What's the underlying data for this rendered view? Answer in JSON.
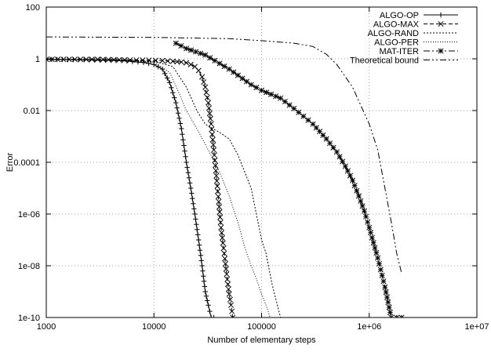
{
  "chart_data": {
    "type": "line",
    "xlabel": "Number of elementary steps",
    "ylabel": "Error",
    "x_scale": "log",
    "y_scale": "log",
    "xlim": [
      1000,
      10000000
    ],
    "ylim": [
      1e-10,
      100
    ],
    "grid": true,
    "legend_position": "top-right",
    "x_tick_labels": [
      "1000",
      "10000",
      "100000",
      "1e+06",
      "1e+07"
    ],
    "y_tick_labels": [
      "1e-10",
      "1e-08",
      "1e-06",
      "0.0001",
      "0.01",
      "1",
      "100"
    ],
    "series": [
      {
        "name": "ALGO-OP",
        "style": "solid",
        "marker": "plus",
        "x": [
          1000,
          2000,
          5000,
          8000,
          10000,
          12000,
          14000,
          16000,
          18000,
          20000,
          22000,
          24000,
          26000,
          28000,
          30000,
          32000,
          34000,
          36000
        ],
        "y": [
          0.95,
          0.92,
          0.85,
          0.72,
          0.6,
          0.4,
          0.12,
          0.02,
          0.002,
          0.0001,
          1e-05,
          1e-06,
          1e-07,
          1e-08,
          1e-09,
          3e-10,
          1e-10,
          1e-10
        ]
      },
      {
        "name": "ALGO-MAX",
        "style": "dashed",
        "marker": "cross",
        "x": [
          1000,
          3000,
          6000,
          9000,
          12000,
          15000,
          18000,
          20000,
          22000,
          24000,
          26000,
          28000,
          30000,
          32000,
          34000,
          36000,
          38000,
          40000,
          42000,
          45000,
          48000,
          50000,
          52000,
          54000
        ],
        "y": [
          0.95,
          0.95,
          0.9,
          0.88,
          0.85,
          0.8,
          0.75,
          0.7,
          0.6,
          0.5,
          0.35,
          0.2,
          0.08,
          0.02,
          0.003,
          0.0003,
          3e-05,
          3e-06,
          3e-07,
          3e-08,
          3e-09,
          8e-10,
          3e-10,
          1e-10
        ]
      },
      {
        "name": "ALGO-RAND",
        "style": "dotted",
        "marker": "none",
        "x": [
          1000,
          5000,
          10000,
          15000,
          20000,
          25000,
          30000,
          35000,
          40000,
          50000,
          60000,
          80000,
          100000,
          110000,
          125000,
          140000,
          150000
        ],
        "y": [
          0.95,
          0.9,
          0.8,
          0.5,
          0.08,
          0.01,
          0.003,
          0.002,
          0.0015,
          0.0008,
          0.0002,
          1e-05,
          1e-07,
          3e-08,
          2e-09,
          3e-10,
          1e-10
        ]
      },
      {
        "name": "ALGO-PER",
        "style": "dotted-fine",
        "marker": "none",
        "x": [
          1000,
          5000,
          10000,
          14000,
          17000,
          20000,
          25000,
          30000,
          40000,
          50000,
          60000,
          70000,
          80000,
          90000,
          100000,
          110000,
          120000
        ],
        "y": [
          0.95,
          0.9,
          0.75,
          0.3,
          0.05,
          0.01,
          0.002,
          0.0005,
          5e-05,
          5e-06,
          5e-07,
          5e-08,
          1e-08,
          3e-09,
          8e-10,
          3e-10,
          1e-10
        ]
      },
      {
        "name": "MAT-ITER",
        "style": "dash-dot",
        "marker": "star",
        "x": [
          16000,
          20000,
          30000,
          50000,
          80000,
          100000,
          150000,
          200000,
          300000,
          400000,
          500000,
          600000,
          700000,
          800000,
          900000,
          1000000,
          1200000,
          1400000,
          1600000,
          1800000,
          2000000
        ],
        "y": [
          4,
          2.5,
          1.4,
          0.4,
          0.1,
          0.06,
          0.03,
          0.012,
          0.003,
          0.0008,
          0.00025,
          7e-05,
          2e-05,
          5e-06,
          1.3e-06,
          3e-07,
          2e-08,
          1.5e-09,
          1e-10,
          1e-10,
          1e-10
        ]
      },
      {
        "name": "Theoretical bound",
        "style": "dash-dot-dot",
        "marker": "none",
        "x": [
          1000,
          10000,
          50000,
          100000,
          200000,
          300000,
          400000,
          500000,
          700000,
          1000000,
          1200000,
          1400000,
          1600000,
          1800000,
          2000000
        ],
        "y": [
          7,
          6.7,
          6,
          5,
          4,
          3,
          1.5,
          0.6,
          0.08,
          0.003,
          0.0003,
          1e-05,
          5e-07,
          3e-08,
          5e-09
        ]
      }
    ]
  }
}
